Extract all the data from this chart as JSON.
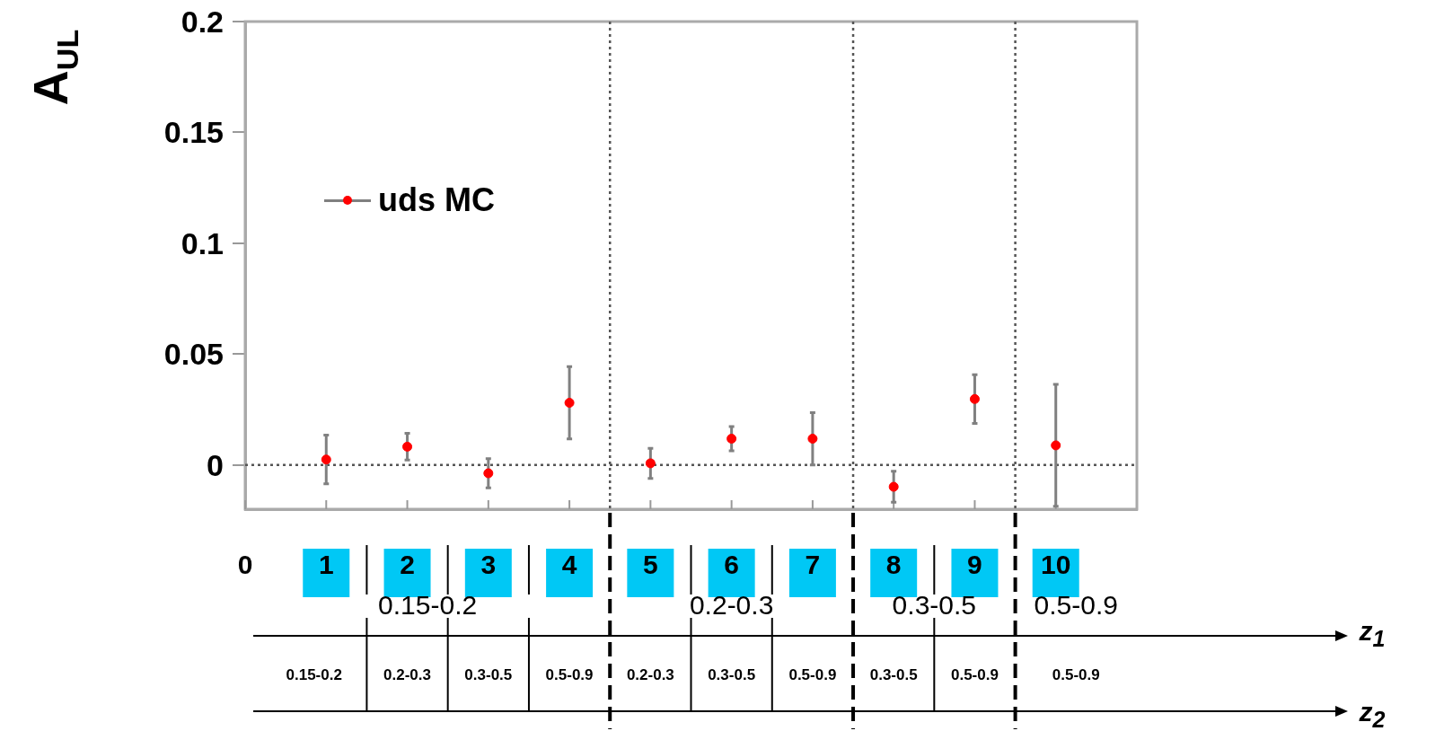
{
  "chart_data": {
    "type": "scatter",
    "ylabel": "A$_{UL}$",
    "x": [
      1,
      2,
      3,
      4,
      5,
      6,
      7,
      8,
      9,
      10
    ],
    "series": [
      {
        "name": "uds MC",
        "color": "#ff0000",
        "values": [
          0.0024,
          0.0082,
          -0.0038,
          0.028,
          0.0007,
          0.0118,
          0.0118,
          -0.0099,
          0.0297,
          0.0088
        ],
        "errors": [
          0.011,
          0.006,
          0.0066,
          0.0163,
          0.0068,
          0.0055,
          0.0118,
          0.007,
          0.011,
          0.0275
        ]
      }
    ],
    "xlim": [
      0,
      11
    ],
    "xticks": [
      0,
      1,
      2,
      3,
      4,
      5,
      6,
      7,
      8,
      9,
      10
    ],
    "ylim": [
      -0.02,
      0.2
    ],
    "yticks": [
      0,
      0.05,
      0.1,
      0.15,
      0.2
    ],
    "ref_lines": [
      {
        "axis": "y",
        "value": 0,
        "line_style": "dotted",
        "color": "#555555"
      },
      {
        "axis": "x",
        "value": 4.5,
        "line_style": "dotted",
        "color": "#555555"
      },
      {
        "axis": "x",
        "value": 7.5,
        "line_style": "dotted",
        "color": "#555555"
      },
      {
        "axis": "x",
        "value": 9.5,
        "line_style": "dotted",
        "color": "#555555"
      }
    ],
    "legend": "top left",
    "marker": "circle",
    "annotations": [
      "0.15-0.2",
      "0.2-0.3",
      "0.3-0.5",
      "0.5-0.9",
      "z$_{1}$",
      "0.15-0.2",
      "0.2-0.3",
      "0.3-0.5",
      "0.5-0.9",
      "0.2-0.3",
      "0.3-0.5",
      "0.5-0.9",
      "0.3-0.5",
      "0.5-0.9",
      "0.5-0.9",
      "z$_{2}$"
    ]
  }
}
